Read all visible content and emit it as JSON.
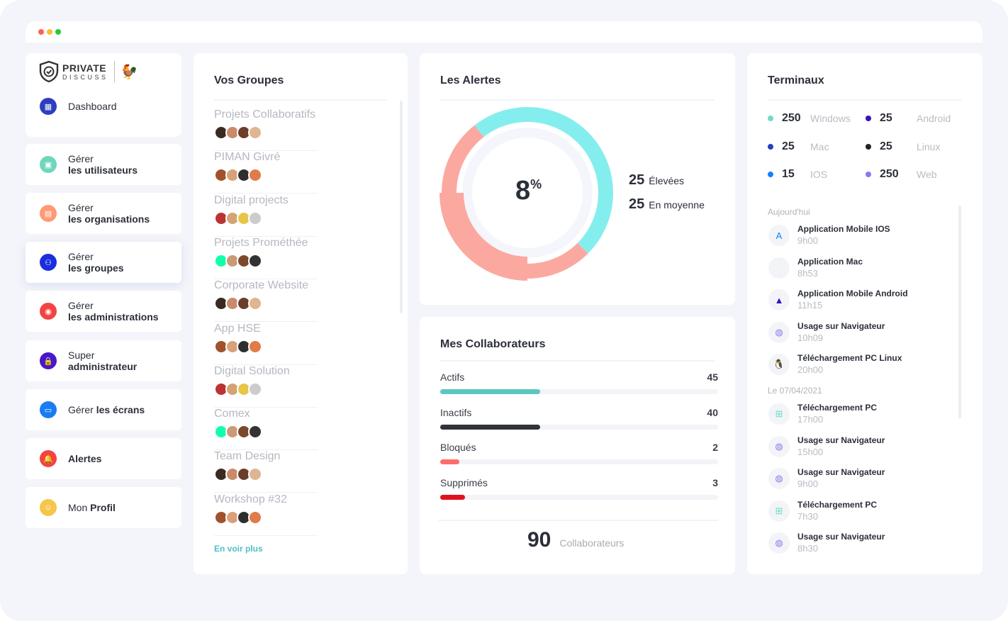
{
  "logo": {
    "line1": "PRIVATE",
    "line2": "DISCUSS"
  },
  "sidebar": {
    "items": [
      {
        "pre": "",
        "label": "Dashboard",
        "icon": "dashboard-icon",
        "color": "#2c3fbf"
      },
      {
        "pre": "Gérer",
        "label": "les utilisateurs",
        "icon": "users-icon",
        "color": "#6fd6be"
      },
      {
        "pre": "Gérer",
        "label": "les organisations",
        "icon": "organisation-icon",
        "color": "#ff9a74"
      },
      {
        "pre": "Gérer",
        "label": "les groupes",
        "icon": "groups-icon",
        "color": "#1a2ee0"
      },
      {
        "pre": "Gérer",
        "label": "les administrations",
        "icon": "administration-icon",
        "color": "#f44343"
      },
      {
        "pre": "Super",
        "label": "administrateur",
        "icon": "super-admin-icon",
        "color": "#4a17c9"
      },
      {
        "pre": "Gérer ",
        "label": "les écrans",
        "icon": "screens-icon",
        "color": "#1a7cf2",
        "inline": true
      },
      {
        "pre": "",
        "label": "Alertes",
        "icon": "alert-icon",
        "color": "#f44343"
      },
      {
        "pre": "Mon ",
        "label": "Profil",
        "icon": "profile-icon",
        "color": "#f6c64a",
        "inline": true
      }
    ]
  },
  "groups": {
    "title": "Vos Groupes",
    "more": "En voir plus",
    "items": [
      "Projets Collaboratifs",
      "PIMAN Givré",
      "Digital projects",
      "Projets Prométhée",
      "Corporate Website",
      "App HSE",
      "Digital Solution",
      "Comex",
      "Team Design",
      "Workshop #32"
    ]
  },
  "alerts": {
    "title": "Les Alertes",
    "percent": "8",
    "percent_sign": "%",
    "high_count": "25",
    "high_label": "Élevées",
    "medium_count": "25",
    "medium_label": "En moyenne",
    "colors": {
      "cyan": "#84eeee",
      "salmon": "#fba9a0"
    }
  },
  "collaborators": {
    "title": "Mes Collaborateurs",
    "rows": [
      {
        "label": "Actifs",
        "value": "45",
        "color": "#5cc6c2",
        "fraction": 0.36
      },
      {
        "label": "Inactifs",
        "value": "40",
        "color": "#30333b",
        "fraction": 0.36
      },
      {
        "label": "Bloqués",
        "value": "2",
        "color": "#ff6b6b",
        "fraction": 0.07
      },
      {
        "label": "Supprimés",
        "value": "3",
        "color": "#e0121c",
        "fraction": 0.09
      }
    ],
    "total": "90",
    "total_label": "Collaborateurs"
  },
  "terminals": {
    "title": "Terminaux",
    "stats": [
      {
        "count": "250",
        "label": "Windows",
        "color": "#6fdcc6"
      },
      {
        "count": "25",
        "label": "Android",
        "color": "#3a10c0"
      },
      {
        "count": "25",
        "label": "Mac",
        "color": "#2340c0"
      },
      {
        "count": "25",
        "label": "Linux",
        "color": "#222"
      },
      {
        "count": "15",
        "label": "IOS",
        "color": "#1580ff"
      },
      {
        "count": "250",
        "label": "Web",
        "color": "#8a78f0"
      }
    ],
    "today": "Aujourd'hui",
    "date": "Le 07/04/2021",
    "activity": [
      {
        "title": "Application Mobile IOS",
        "time": "9h00",
        "icon": "app-store-icon"
      },
      {
        "title": "Application Mac",
        "time": "8h53",
        "icon": "apple-icon"
      },
      {
        "title": "Application Mobile Android",
        "time": "11h15",
        "icon": "android-icon"
      },
      {
        "title": "Usage sur Navigateur",
        "time": "10h09",
        "icon": "globe-icon"
      },
      {
        "title": "Téléchargement PC Linux",
        "time": "20h00",
        "icon": "linux-icon"
      },
      {
        "title": "Téléchargement PC",
        "time": "17h00",
        "icon": "windows-icon"
      },
      {
        "title": "Usage sur Navigateur",
        "time": "15h00",
        "icon": "globe-icon"
      },
      {
        "title": "Usage sur Navigateur",
        "time": "9h00",
        "icon": "globe-icon"
      },
      {
        "title": "Téléchargement PC",
        "time": "7h30",
        "icon": "windows-icon"
      },
      {
        "title": "Usage sur Navigateur",
        "time": "8h30",
        "icon": "globe-icon"
      }
    ]
  }
}
